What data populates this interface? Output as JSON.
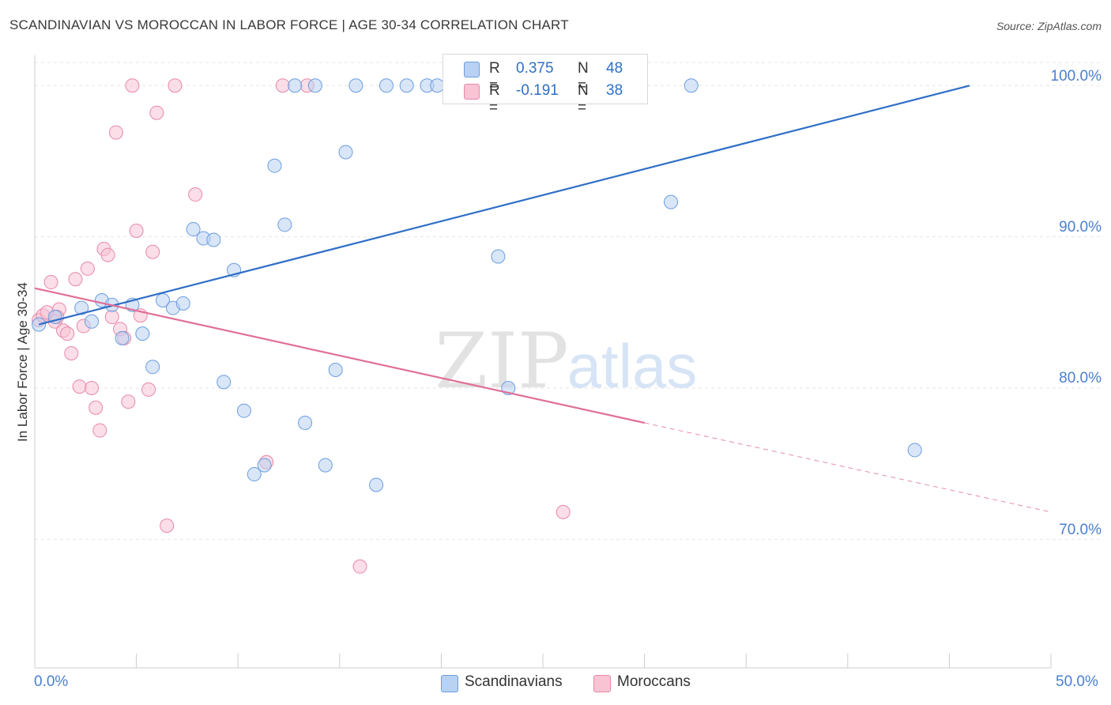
{
  "title": "SCANDINAVIAN VS MOROCCAN IN LABOR FORCE | AGE 30-34 CORRELATION CHART",
  "source": "Source: ZipAtlas.com",
  "watermark": {
    "zip": "ZIP",
    "atlas": "atlas"
  },
  "legend": {
    "rows": [
      {
        "r_label": "R =",
        "r_value": "0.375",
        "n_label": "N =",
        "n_value": "48",
        "color": "#b9d1f3"
      },
      {
        "r_label": "R =",
        "r_value": "-0.191",
        "n_label": "N =",
        "n_value": "38",
        "color": "#f8c3d3"
      }
    ]
  },
  "bottom_legend": [
    {
      "label": "Scandinavians",
      "color": "#b9d1f3"
    },
    {
      "label": "Moroccans",
      "color": "#f8c3d3"
    }
  ],
  "chart_data": {
    "type": "scatter",
    "xlabel": "",
    "ylabel": "In Labor Force | Age 30-34",
    "xlim": [
      0,
      50
    ],
    "ylim": [
      61.5,
      102
    ],
    "x_tick_labels": [
      "0.0%",
      "50.0%"
    ],
    "y_ticks": [
      70,
      80,
      90,
      100
    ],
    "y_tick_labels": [
      "70.0%",
      "80.0%",
      "90.0%",
      "100.0%"
    ],
    "grid": true,
    "colors": {
      "scandinavians_fill": "#b9d1f3",
      "scandinavians_stroke": "#6a9de0",
      "scandinavians_line": "#2f6fc7",
      "moroccans_fill": "#f8c3d3",
      "moroccans_stroke": "#e889a8",
      "moroccans_line": "#e06f97"
    },
    "series": [
      {
        "name": "Scandinavians",
        "points": [
          [
            0.2,
            84.2
          ],
          [
            1.0,
            84.7
          ],
          [
            2.3,
            85.3
          ],
          [
            2.8,
            84.4
          ],
          [
            3.3,
            85.8
          ],
          [
            3.8,
            85.5
          ],
          [
            4.3,
            83.3
          ],
          [
            4.8,
            85.5
          ],
          [
            5.3,
            83.6
          ],
          [
            5.8,
            81.4
          ],
          [
            6.3,
            85.8
          ],
          [
            6.8,
            85.3
          ],
          [
            7.3,
            85.6
          ],
          [
            7.8,
            90.5
          ],
          [
            8.3,
            89.9
          ],
          [
            8.8,
            89.8
          ],
          [
            9.3,
            80.4
          ],
          [
            9.8,
            87.8
          ],
          [
            10.3,
            78.5
          ],
          [
            10.8,
            74.3
          ],
          [
            11.3,
            74.9
          ],
          [
            11.8,
            94.7
          ],
          [
            12.3,
            90.8
          ],
          [
            12.8,
            100.0
          ],
          [
            13.3,
            77.7
          ],
          [
            13.8,
            100.0
          ],
          [
            14.3,
            74.9
          ],
          [
            14.8,
            81.2
          ],
          [
            15.3,
            95.6
          ],
          [
            15.8,
            100.0
          ],
          [
            16.8,
            73.6
          ],
          [
            17.3,
            100.0
          ],
          [
            18.3,
            100.0
          ],
          [
            19.3,
            100.0
          ],
          [
            19.8,
            100.0
          ],
          [
            21.8,
            100.0
          ],
          [
            22.8,
            88.7
          ],
          [
            23.3,
            80.0
          ],
          [
            23.8,
            100.0
          ],
          [
            25.3,
            100.0
          ],
          [
            26.8,
            100.0
          ],
          [
            27.8,
            100.0
          ],
          [
            28.8,
            100.0
          ],
          [
            31.3,
            92.3
          ],
          [
            32.3,
            100.0
          ],
          [
            43.3,
            75.9
          ],
          [
            20.8,
            100.0
          ],
          [
            26.3,
            100.0
          ]
        ],
        "trend": {
          "x": [
            0.2,
            46.0
          ],
          "y": [
            84.2,
            100.0
          ]
        }
      },
      {
        "name": "Moroccans",
        "points": [
          [
            0.2,
            84.5
          ],
          [
            0.4,
            84.8
          ],
          [
            0.6,
            85.0
          ],
          [
            0.8,
            87.0
          ],
          [
            1.0,
            84.4
          ],
          [
            1.2,
            85.2
          ],
          [
            1.4,
            83.8
          ],
          [
            1.6,
            83.6
          ],
          [
            1.8,
            82.3
          ],
          [
            2.0,
            87.2
          ],
          [
            2.2,
            80.1
          ],
          [
            2.4,
            84.1
          ],
          [
            2.6,
            87.9
          ],
          [
            2.8,
            80.0
          ],
          [
            3.0,
            78.7
          ],
          [
            3.2,
            77.2
          ],
          [
            3.4,
            89.2
          ],
          [
            3.6,
            88.8
          ],
          [
            3.8,
            84.7
          ],
          [
            4.0,
            96.9
          ],
          [
            4.2,
            83.9
          ],
          [
            4.4,
            83.3
          ],
          [
            4.6,
            79.1
          ],
          [
            4.8,
            100.0
          ],
          [
            5.0,
            90.4
          ],
          [
            5.2,
            84.8
          ],
          [
            5.6,
            79.9
          ],
          [
            5.8,
            89.0
          ],
          [
            6.0,
            98.2
          ],
          [
            6.5,
            70.9
          ],
          [
            6.9,
            100.0
          ],
          [
            7.9,
            92.8
          ],
          [
            11.4,
            75.1
          ],
          [
            12.2,
            100.0
          ],
          [
            13.4,
            100.0
          ],
          [
            16.0,
            68.2
          ],
          [
            26.0,
            71.8
          ],
          [
            1.1,
            84.7
          ]
        ],
        "trend": {
          "x": [
            0.0,
            30.0
          ],
          "y": [
            86.6,
            77.7
          ]
        },
        "trend_extension": {
          "x": [
            30.0,
            50.0
          ],
          "y": [
            77.7,
            71.8
          ]
        }
      }
    ]
  }
}
